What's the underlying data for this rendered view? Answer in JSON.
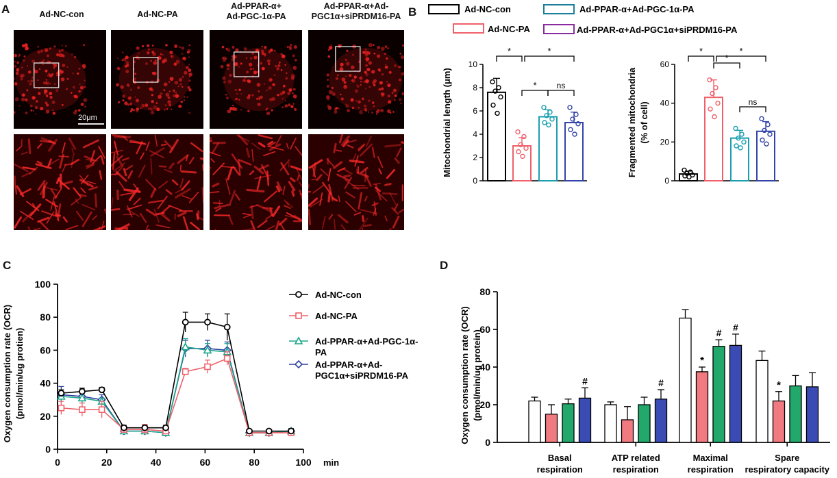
{
  "panels": {
    "A": "A",
    "B": "B",
    "C": "C",
    "D": "D"
  },
  "panelA": {
    "groups": [
      {
        "line1": "Ad-NC-con",
        "line2": ""
      },
      {
        "line1": "Ad-NC-PA",
        "line2": ""
      },
      {
        "line1": "Ad-PPAR-α+",
        "line2": "Ad-PGC-1α-PA"
      },
      {
        "line1": "Ad-PPAR-α+Ad-",
        "line2": "PGC1α+siPRDM16-PA"
      }
    ],
    "scale_bar": "20μm"
  },
  "legendB": [
    {
      "label": "Ad-NC-con",
      "color": "#000000"
    },
    {
      "label": "Ad-NC-PA",
      "color": "#f0606a"
    },
    {
      "label": "Ad-PPAR-α+Ad-PGC-1α-PA",
      "color": "#1a7f9a"
    },
    {
      "label": "Ad-PPAR-α+Ad-PGC1α+siPRDM16-PA",
      "color": "#8a2ca0"
    }
  ],
  "colors": {
    "con": "#000000",
    "pa": "#f0606a",
    "ppar": "#1aa58a",
    "sip": "#2e3fa0",
    "b_ppar": "#1a9fb0",
    "b_sip": "#3244a8"
  },
  "chart_data": [
    {
      "id": "B1",
      "type": "bar",
      "ylabel": "Mitochondrial length (μm)",
      "ylim": [
        0,
        10
      ],
      "yticks": [
        0,
        2,
        4,
        6,
        8,
        10
      ],
      "groups": [
        "Ad-NC-con",
        "Ad-NC-PA",
        "Ad-PPAR-α+Ad-PGC-1α-PA",
        "Ad-PPAR-α+Ad-PGC1α+siPRDM16-PA"
      ],
      "values": [
        7.6,
        3.0,
        5.5,
        5.0
      ],
      "errors": [
        1.2,
        0.7,
        0.6,
        0.9
      ],
      "points": [
        [
          8.5,
          8.0,
          7.7,
          7.2,
          6.5,
          5.8
        ],
        [
          4.2,
          3.8,
          3.1,
          2.8,
          2.5,
          2.1
        ],
        [
          6.3,
          5.9,
          5.6,
          5.3,
          5.0,
          4.8
        ],
        [
          6.3,
          5.7,
          5.3,
          4.9,
          4.4,
          4.0
        ]
      ],
      "significance": [
        {
          "from": 0,
          "to": 1,
          "label": "*"
        },
        {
          "from": 1,
          "to": 3,
          "label": "*"
        },
        {
          "from": 1,
          "to": 2,
          "label": "*"
        },
        {
          "from": 2,
          "to": 3,
          "label": "ns"
        }
      ]
    },
    {
      "id": "B2",
      "type": "bar",
      "ylabel": "Fragmented mitochondria",
      "ylabel2": "(% of cell)",
      "ylim": [
        0,
        60
      ],
      "yticks": [
        0,
        20,
        40,
        60
      ],
      "groups": [
        "Ad-NC-con",
        "Ad-NC-PA",
        "Ad-PPAR-α+Ad-PGC-1α-PA",
        "Ad-PPAR-α+Ad-PGC1α+siPRDM16-PA"
      ],
      "values": [
        3.5,
        43,
        22,
        25.5
      ],
      "errors": [
        1.5,
        9,
        4,
        5
      ],
      "points": [
        [
          5.5,
          4.5,
          3.8,
          3.0,
          2.5,
          2.0
        ],
        [
          52,
          48,
          45,
          40,
          37,
          33
        ],
        [
          27,
          24,
          22,
          20,
          18,
          17
        ],
        [
          32,
          29,
          26,
          24,
          21,
          19
        ]
      ],
      "significance": [
        {
          "from": 0,
          "to": 1,
          "label": "*"
        },
        {
          "from": 1,
          "to": 3,
          "label": "*"
        },
        {
          "from": 1,
          "to": 2,
          "label": "*"
        },
        {
          "from": 2,
          "to": 3,
          "label": "ns"
        }
      ]
    },
    {
      "id": "C",
      "type": "line",
      "ylabel": "Oxygen consumption rate (OCR)",
      "ylabel2": "(pmol/min/ug protien)",
      "xlabel": "min",
      "xlim": [
        0,
        100
      ],
      "ylim": [
        0,
        100
      ],
      "xticks": [
        0,
        20,
        40,
        60,
        80,
        100
      ],
      "yticks": [
        0,
        20,
        40,
        60,
        80,
        100
      ],
      "x": [
        1.5,
        10,
        18,
        27,
        35.5,
        44,
        52,
        61,
        69,
        78,
        86,
        95
      ],
      "series": [
        {
          "name": "Ad-NC-con",
          "marker": "circle",
          "values": [
            34,
            35,
            36,
            13,
            13,
            13,
            77,
            77,
            74,
            11,
            11,
            11
          ],
          "errors": [
            2,
            2,
            1.5,
            1.5,
            1.5,
            1.5,
            6,
            5,
            8,
            1,
            1,
            1.5
          ]
        },
        {
          "name": "Ad-NC-PA",
          "marker": "square",
          "values": [
            25,
            24,
            24,
            12,
            12,
            11,
            47,
            50,
            55,
            10,
            10,
            10
          ],
          "errors": [
            4,
            4,
            5,
            2,
            3,
            2,
            2,
            4,
            4,
            1,
            1,
            1
          ]
        },
        {
          "name": "Ad-PPAR-α+Ad-PGC-1α-PA",
          "marker": "triangle",
          "values": [
            32,
            31,
            29,
            11,
            11,
            10,
            62,
            60,
            59,
            10,
            10,
            11
          ],
          "errors": [
            3,
            3,
            2,
            1.5,
            1.5,
            1.5,
            5,
            4,
            5,
            1,
            1,
            1
          ]
        },
        {
          "name": "Ad-PPAR-α+Ad-PGC1α+siPRDM16-PA",
          "marker": "diamond",
          "values": [
            33,
            32,
            30,
            11,
            11,
            10,
            61,
            61,
            60,
            10,
            10,
            11
          ],
          "errors": [
            5,
            3,
            3,
            1.5,
            1.5,
            1.5,
            5,
            5,
            5,
            1,
            1,
            1
          ]
        }
      ],
      "legend": [
        {
          "line1": "Ad-NC-con",
          "line2": ""
        },
        {
          "line1": "Ad-NC-PA",
          "line2": ""
        },
        {
          "line1": "Ad-PPAR-α+Ad-PGC-1α-",
          "line2": "PA"
        },
        {
          "line1": "Ad-PPAR-α+Ad-",
          "line2": "PGC1α+siPRDM16-PA"
        }
      ]
    },
    {
      "id": "D",
      "type": "bar",
      "ylabel": "Oxygen consumption rate (OCR)",
      "ylabel2": "(pmol/min/ug protein)",
      "ylim": [
        0,
        80
      ],
      "yticks": [
        0,
        20,
        40,
        60,
        80
      ],
      "categories": [
        {
          "line1": "Basal",
          "line2": "respiration"
        },
        {
          "line1": "ATP related",
          "line2": "respiration"
        },
        {
          "line1": "Maximal",
          "line2": "respiration"
        },
        {
          "line1": "Spare",
          "line2": "respiratory capacity"
        }
      ],
      "series": [
        {
          "name": "Ad-NC-con",
          "values": [
            22,
            20,
            66,
            43.5
          ],
          "errors": [
            2,
            1.5,
            4.5,
            5
          ]
        },
        {
          "name": "Ad-NC-PA",
          "values": [
            15,
            12,
            37.5,
            22
          ],
          "errors": [
            5,
            7,
            2.5,
            5
          ],
          "marks": [
            "",
            "",
            "*",
            "*"
          ]
        },
        {
          "name": "Ad-PPAR-α+Ad-PGC-1α-PA",
          "values": [
            20.5,
            20,
            51,
            30
          ],
          "errors": [
            2.5,
            4,
            3.5,
            5.5
          ],
          "marks": [
            "",
            "",
            "#",
            ""
          ]
        },
        {
          "name": "Ad-PPAR-α+Ad-PGC1α+siPRDM16-PA",
          "values": [
            23.5,
            23,
            51.5,
            29.5
          ],
          "errors": [
            5.5,
            5,
            6,
            7.5
          ],
          "marks": [
            "#",
            "#",
            "#",
            ""
          ]
        }
      ]
    }
  ]
}
